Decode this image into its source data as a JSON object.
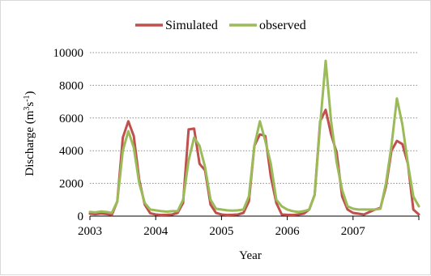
{
  "colors": {
    "simulated": "#c0504d",
    "observed": "#9bbb59",
    "gridline": "#8c8c8c",
    "axis": "#000000"
  },
  "chart_data": {
    "type": "line",
    "title": "",
    "xlabel": "Year",
    "ylabel_parts": {
      "base": "Discharge (m",
      "sup1": "3",
      "mid": "s",
      "sup2": "-1",
      "end": ")"
    },
    "x_unit": "month",
    "x_tick_labels": [
      "2003",
      "2004",
      "2005",
      "2006",
      "2007"
    ],
    "y_ticks": [
      0,
      2000,
      4000,
      6000,
      8000,
      10000
    ],
    "ylim": [
      0,
      10000
    ],
    "grid": "horizontal dotted",
    "legend_position": "top-center",
    "series": [
      {
        "name": "Simulated",
        "values": [
          150,
          120,
          160,
          130,
          80,
          900,
          4800,
          5800,
          4900,
          2200,
          700,
          180,
          100,
          70,
          80,
          100,
          200,
          800,
          5300,
          5350,
          3200,
          2800,
          700,
          200,
          100,
          70,
          80,
          100,
          200,
          900,
          4300,
          5000,
          4900,
          2400,
          800,
          100,
          80,
          70,
          100,
          150,
          400,
          1300,
          5800,
          6500,
          5000,
          3900,
          1200,
          400,
          200,
          150,
          100,
          250,
          400,
          500,
          1800,
          4000,
          4600,
          4400,
          3200,
          400,
          100
        ]
      },
      {
        "name": "observed",
        "values": [
          250,
          230,
          280,
          250,
          200,
          900,
          4000,
          5200,
          4200,
          2000,
          800,
          400,
          350,
          300,
          270,
          300,
          300,
          1000,
          3400,
          4800,
          4300,
          3000,
          1000,
          450,
          400,
          350,
          330,
          350,
          400,
          1200,
          4300,
          5800,
          4600,
          3200,
          1000,
          600,
          400,
          300,
          250,
          300,
          400,
          1300,
          5600,
          9500,
          5800,
          3300,
          1600,
          600,
          450,
          400,
          400,
          400,
          400,
          450,
          2000,
          4300,
          7200,
          5600,
          3200,
          1200,
          600
        ]
      }
    ]
  }
}
